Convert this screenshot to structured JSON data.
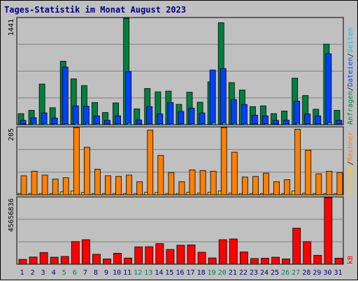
{
  "chart_data": {
    "title": "Tages-Statistik im Monat August 2023",
    "type": "bar",
    "days": [
      "1",
      "2",
      "3",
      "4",
      "5",
      "6",
      "7",
      "8",
      "9",
      "10",
      "11",
      "12",
      "13",
      "14",
      "15",
      "16",
      "17",
      "18",
      "19",
      "20",
      "21",
      "22",
      "23",
      "24",
      "25",
      "26",
      "27",
      "28",
      "29",
      "30",
      "31"
    ],
    "weekend_days": [
      "5",
      "6",
      "12",
      "13",
      "19",
      "20",
      "26",
      "27"
    ],
    "panels": [
      {
        "name": "requests",
        "ymax_label": "1441",
        "ymax": 1441,
        "right_labels": [
          {
            "text": "Anfragen",
            "color": "#008040"
          },
          {
            "text": "/",
            "color": "#000000"
          },
          {
            "text": "Dateien",
            "color": "#0040ff"
          },
          {
            "text": "/",
            "color": "#000000"
          },
          {
            "text": "Seiten",
            "color": "#00c0ff"
          }
        ],
        "series": [
          {
            "name": "Anfragen",
            "color": "#008040",
            "values": [
              150,
              195,
              550,
              230,
              860,
              620,
              530,
              300,
              165,
              295,
              1441,
              215,
              490,
              445,
              455,
              275,
              440,
              305,
              580,
              1380,
              570,
              470,
              245,
              255,
              150,
              185,
              630,
              395,
              210,
              1090,
              195
            ]
          },
          {
            "name": "Dateien",
            "color": "#0040ff",
            "values": [
              60,
              95,
              160,
              90,
              780,
              255,
              250,
              120,
              60,
              120,
              720,
              65,
              245,
              145,
              300,
              180,
              225,
              160,
              740,
              760,
              340,
              275,
              130,
              120,
              60,
              60,
              320,
              145,
              120,
              960,
              60
            ]
          },
          {
            "name": "Seiten",
            "color": "#00c0ff",
            "values": [
              10,
              20,
              18,
              14,
              15,
              22,
              20,
              16,
              10,
              14,
              25,
              10,
              14,
              14,
              16,
              14,
              16,
              13,
              30,
              28,
              20,
              18,
              12,
              14,
              10,
              12,
              22,
              14,
              12,
              30,
              10
            ]
          }
        ]
      },
      {
        "name": "visits",
        "ymax_label": "205",
        "ymax": 205,
        "right_labels": [
          {
            "text": "Besuche",
            "color": "#ffd000"
          },
          {
            "text": "/",
            "color": "#000000"
          },
          {
            "text": "Rechner",
            "color": "#ff8000"
          }
        ],
        "series": [
          {
            "name": "Besuche",
            "color": "#ffd000",
            "values": [
              4,
              4,
              4,
              4,
              9,
              12,
              7,
              4,
              4,
              4,
              4,
              4,
              8,
              7,
              4,
              4,
              8,
              5,
              8,
              12,
              5,
              4,
              4,
              4,
              4,
              4,
              12,
              5,
              4,
              4,
              4
            ]
          },
          {
            "name": "Rechner",
            "color": "#ff8000",
            "values": [
              58,
              72,
              60,
              48,
              52,
              205,
              145,
              78,
              58,
              56,
              60,
              40,
              197,
              120,
              68,
              40,
              76,
              74,
              72,
              205,
              130,
              54,
              56,
              66,
              40,
              46,
              200,
              136,
              64,
              72,
              68
            ]
          }
        ]
      },
      {
        "name": "traffic",
        "ymax_label": "45656836",
        "ymax": 45656836,
        "right_labels": [
          {
            "text": "kB",
            "color": "#ff0000"
          }
        ],
        "series": [
          {
            "name": "kB",
            "color": "#ff0000",
            "values": [
              3300000,
              4900000,
              8000000,
              4800000,
              5300000,
              15500000,
              16800000,
              6800000,
              3600000,
              7500000,
              4200000,
              11900000,
              12000000,
              14100000,
              10100000,
              13000000,
              13200000,
              8200000,
              4300000,
              16800000,
              17300000,
              8400000,
              3900000,
              4100000,
              4800000,
              3600000,
              24700000,
              15500000,
              6100000,
              45656836,
              4100000
            ]
          }
        ]
      }
    ]
  }
}
